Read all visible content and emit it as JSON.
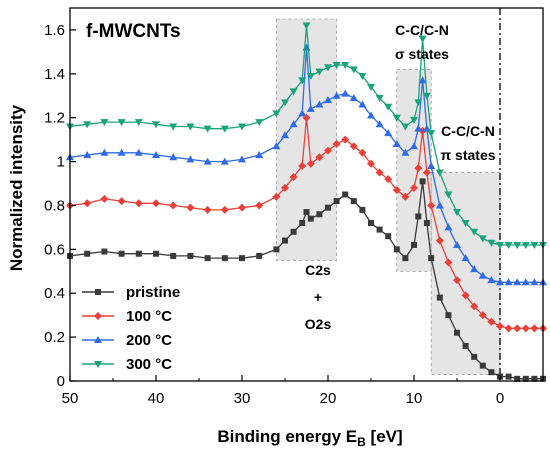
{
  "chart_data": {
    "type": "line",
    "title": "f-MWCNTs",
    "xlabel": "Binding energy E",
    "xlabel_sub": "B",
    "xlabel_unit": " [eV]",
    "ylabel": "Normalized intensity",
    "xlim": [
      50,
      -5
    ],
    "ylim": [
      0,
      1.7
    ],
    "xticks": [
      50,
      40,
      30,
      20,
      10,
      0
    ],
    "yticks": [
      0,
      0.2,
      0.4,
      0.6,
      0.8,
      1,
      1.2,
      1.4,
      1.6
    ],
    "ytick_labels": [
      "0",
      "0.2",
      "0.4",
      "0.6",
      "0.8",
      "1",
      "1.2",
      "1.4",
      "1.6"
    ],
    "grid": false,
    "legend_position": "bottom-left",
    "reference_line_x": 0,
    "shaded_regions": [
      {
        "x": [
          26,
          19
        ],
        "y": [
          0.55,
          1.65
        ]
      },
      {
        "x": [
          12,
          8
        ],
        "y": [
          0.5,
          1.42
        ]
      },
      {
        "x": [
          8,
          0
        ],
        "y": [
          0.03,
          0.95
        ]
      }
    ],
    "annotations": [
      {
        "lines": [
          "C2s",
          "+",
          "O2s"
        ]
      },
      {
        "lines": [
          "C-C/C-N",
          "σ states"
        ]
      },
      {
        "lines": [
          "C-C/C-N",
          "π states"
        ]
      }
    ],
    "x": [
      50,
      48,
      46,
      44,
      42,
      40,
      38,
      36,
      34,
      32,
      30,
      28,
      26,
      25,
      24,
      23,
      22.5,
      22,
      21,
      20,
      19,
      18,
      17,
      16,
      15,
      14,
      13,
      12,
      11,
      10,
      9.5,
      9,
      8.5,
      8,
      7,
      6,
      5,
      4,
      3,
      2,
      1,
      0,
      -1,
      -2,
      -3,
      -4,
      -5
    ],
    "series": [
      {
        "name": "pristine",
        "color": "#3a3a3a",
        "marker": "square",
        "values": [
          0.57,
          0.58,
          0.59,
          0.58,
          0.58,
          0.58,
          0.57,
          0.57,
          0.56,
          0.56,
          0.56,
          0.57,
          0.6,
          0.64,
          0.68,
          0.72,
          0.77,
          0.74,
          0.76,
          0.79,
          0.82,
          0.85,
          0.82,
          0.78,
          0.72,
          0.69,
          0.66,
          0.6,
          0.56,
          0.62,
          0.75,
          0.91,
          0.72,
          0.56,
          0.38,
          0.3,
          0.22,
          0.16,
          0.11,
          0.07,
          0.04,
          0.02,
          0.02,
          0.01,
          0.01,
          0.01,
          0.01
        ]
      },
      {
        "name": "100 °C",
        "color": "#e8413a",
        "marker": "diamond",
        "values": [
          0.8,
          0.81,
          0.83,
          0.82,
          0.81,
          0.81,
          0.8,
          0.79,
          0.78,
          0.78,
          0.79,
          0.8,
          0.84,
          0.88,
          0.93,
          0.98,
          1.2,
          0.99,
          1.02,
          1.05,
          1.08,
          1.1,
          1.07,
          1.04,
          0.99,
          0.95,
          0.92,
          0.87,
          0.84,
          0.88,
          0.97,
          1.14,
          0.95,
          0.8,
          0.64,
          0.54,
          0.46,
          0.39,
          0.34,
          0.3,
          0.27,
          0.25,
          0.24,
          0.24,
          0.24,
          0.24,
          0.24
        ]
      },
      {
        "name": "200 °C",
        "color": "#2f6be6",
        "marker": "triangle-up",
        "values": [
          1.02,
          1.03,
          1.04,
          1.04,
          1.04,
          1.03,
          1.02,
          1.01,
          1.0,
          1.0,
          1.01,
          1.03,
          1.07,
          1.12,
          1.17,
          1.22,
          1.52,
          1.24,
          1.26,
          1.28,
          1.3,
          1.31,
          1.29,
          1.26,
          1.21,
          1.17,
          1.13,
          1.08,
          1.04,
          1.07,
          1.15,
          1.37,
          1.15,
          0.98,
          0.8,
          0.7,
          0.62,
          0.56,
          0.51,
          0.48,
          0.46,
          0.45,
          0.45,
          0.45,
          0.45,
          0.45,
          0.45
        ]
      },
      {
        "name": "300 °C",
        "color": "#1aa37a",
        "marker": "triangle-down",
        "values": [
          1.16,
          1.17,
          1.18,
          1.18,
          1.18,
          1.17,
          1.16,
          1.16,
          1.15,
          1.15,
          1.16,
          1.18,
          1.22,
          1.27,
          1.32,
          1.37,
          1.62,
          1.39,
          1.41,
          1.43,
          1.44,
          1.44,
          1.42,
          1.39,
          1.34,
          1.29,
          1.25,
          1.2,
          1.16,
          1.19,
          1.27,
          1.56,
          1.3,
          1.13,
          0.95,
          0.85,
          0.77,
          0.72,
          0.68,
          0.65,
          0.63,
          0.62,
          0.62,
          0.62,
          0.62,
          0.62,
          0.62
        ]
      }
    ]
  }
}
